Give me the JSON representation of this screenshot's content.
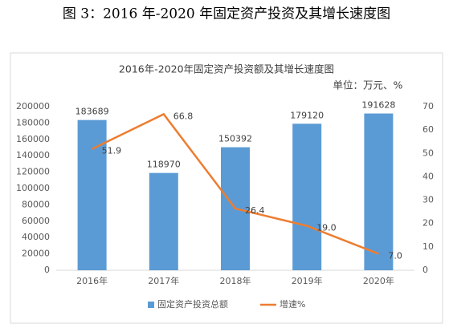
{
  "caption": "图 3：2016 年-2020 年固定资产投资及其增长速度图",
  "chart_data": {
    "type": "bar_line",
    "title": "2016年-2020年固定资产投资额及其增长速度图",
    "unit": "单位：万元、%",
    "categories": [
      "2016年",
      "2017年",
      "2018年",
      "2019年",
      "2020年"
    ],
    "series": [
      {
        "name": "固定资产投资总额",
        "type": "bar",
        "color": "#5b9bd5",
        "values": [
          183689,
          118970,
          150392,
          179120,
          191628
        ]
      },
      {
        "name": "增速%",
        "type": "line",
        "axis": "y2",
        "color": "#ed7d31",
        "values": [
          51.9,
          66.8,
          26.4,
          19.0,
          7.0
        ],
        "value_labels": [
          "51.9",
          "66.8",
          "26.4",
          "19.0",
          "7.0"
        ]
      }
    ],
    "ylim": [
      0,
      200000
    ],
    "yticks": [
      0,
      20000,
      40000,
      60000,
      80000,
      100000,
      120000,
      140000,
      160000,
      180000,
      200000
    ],
    "y2lim": [
      0,
      70
    ],
    "y2ticks": [
      0,
      10,
      20,
      30,
      40,
      50,
      60,
      70
    ],
    "legend": "bottom"
  }
}
